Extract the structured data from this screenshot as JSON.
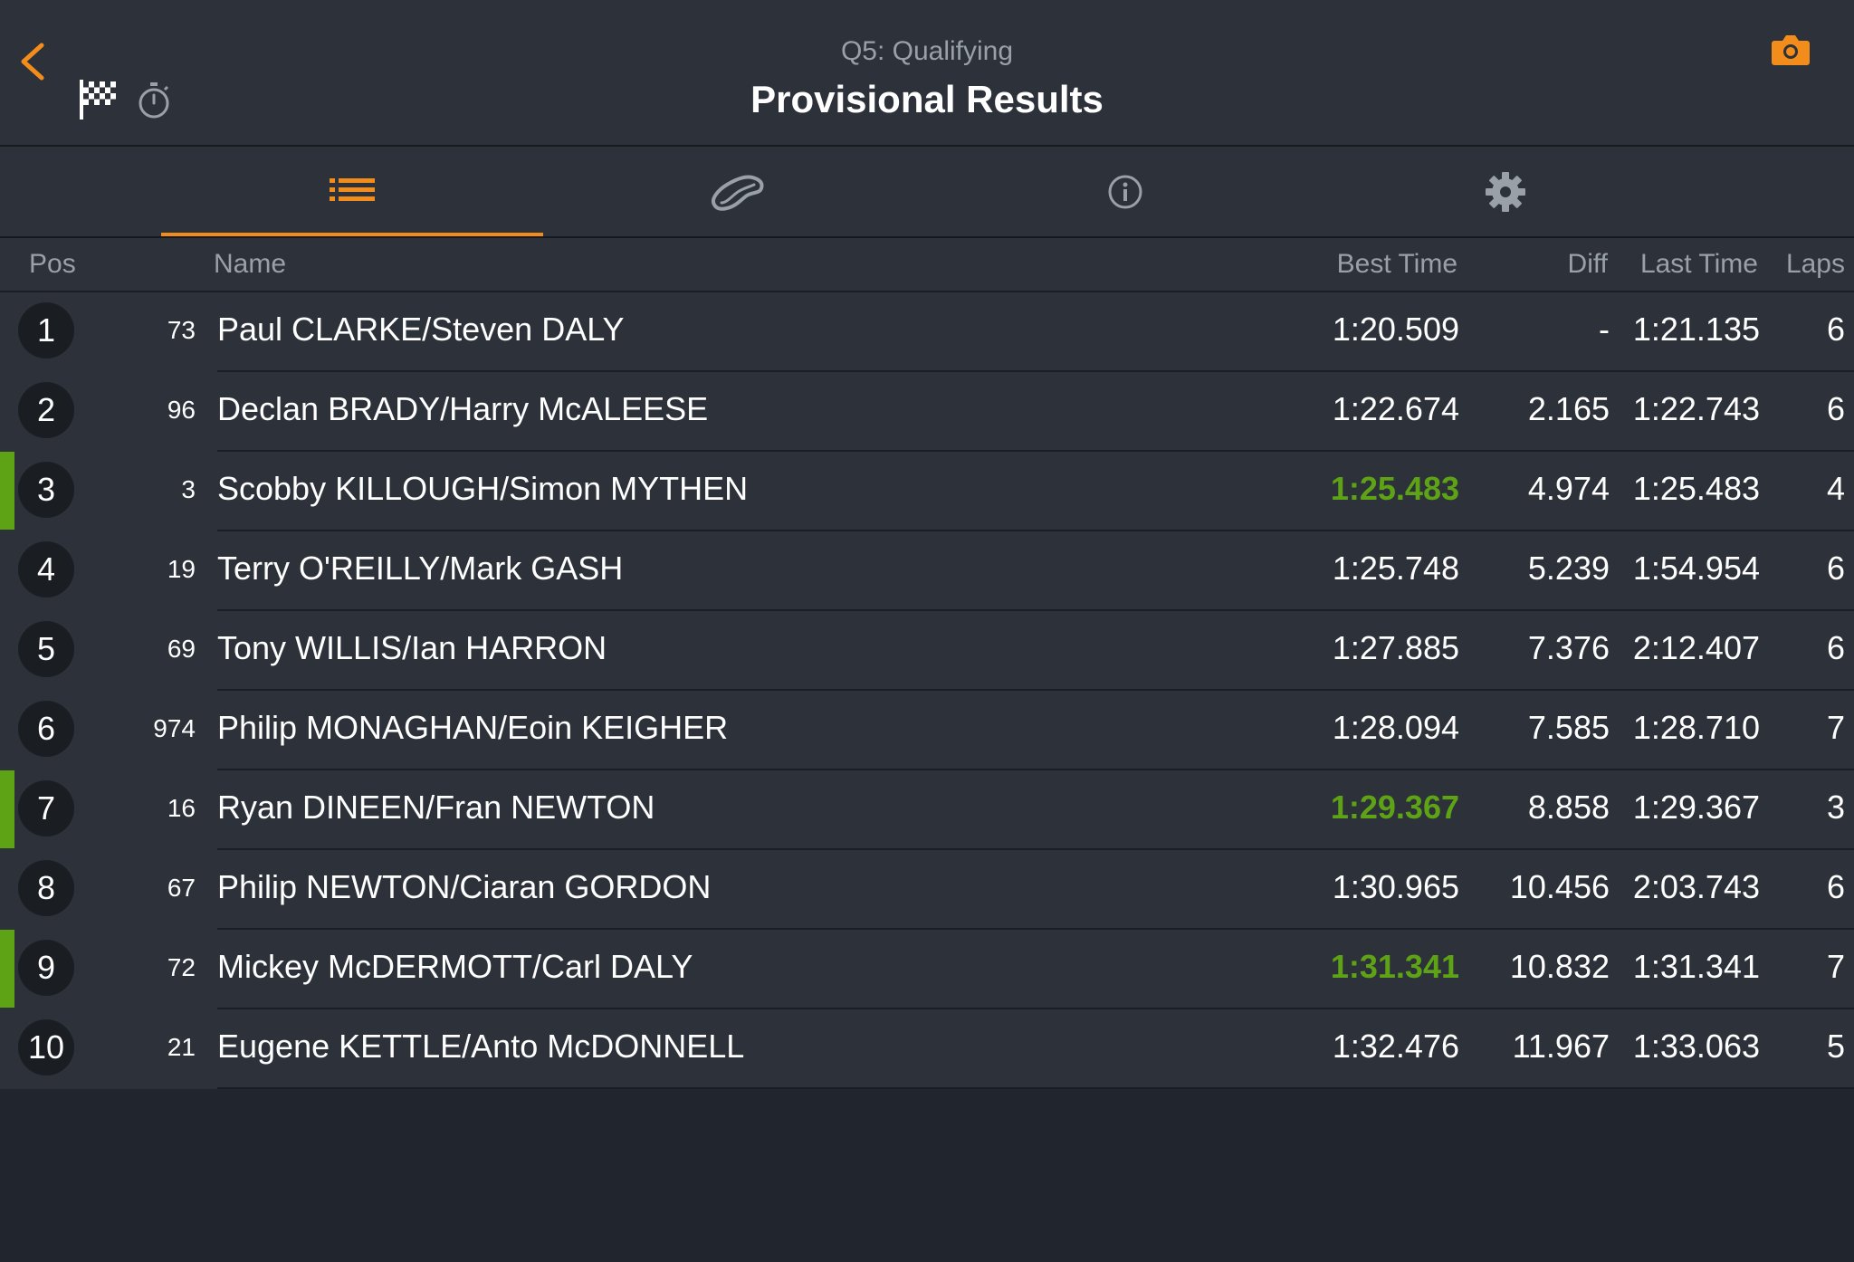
{
  "header": {
    "session": "Q5: Qualifying",
    "title": "Provisional Results"
  },
  "tabs": [
    {
      "icon": "list-icon",
      "active": true
    },
    {
      "icon": "track-icon",
      "active": false
    },
    {
      "icon": "info-icon",
      "active": false
    },
    {
      "icon": "gear-icon",
      "active": false
    }
  ],
  "columns": {
    "pos": "Pos",
    "name": "Name",
    "best": "Best Time",
    "diff": "Diff",
    "last": "Last Time",
    "laps": "Laps"
  },
  "colors": {
    "accent": "#f28d1c",
    "personal_best": "#5ea315",
    "background": "#21252d",
    "panel": "#2c313a"
  },
  "results": [
    {
      "pos": "1",
      "num": "73",
      "name": "Paul CLARKE/Steven DALY",
      "best": "1:20.509",
      "diff": "-",
      "last": "1:21.135",
      "laps": "6",
      "pb": false
    },
    {
      "pos": "2",
      "num": "96",
      "name": "Declan BRADY/Harry McALEESE",
      "best": "1:22.674",
      "diff": "2.165",
      "last": "1:22.743",
      "laps": "6",
      "pb": false
    },
    {
      "pos": "3",
      "num": "3",
      "name": "Scobby KILLOUGH/Simon MYTHEN",
      "best": "1:25.483",
      "diff": "4.974",
      "last": "1:25.483",
      "laps": "4",
      "pb": true
    },
    {
      "pos": "4",
      "num": "19",
      "name": "Terry O'REILLY/Mark GASH",
      "best": "1:25.748",
      "diff": "5.239",
      "last": "1:54.954",
      "laps": "6",
      "pb": false
    },
    {
      "pos": "5",
      "num": "69",
      "name": "Tony WILLIS/Ian HARRON",
      "best": "1:27.885",
      "diff": "7.376",
      "last": "2:12.407",
      "laps": "6",
      "pb": false
    },
    {
      "pos": "6",
      "num": "974",
      "name": "Philip MONAGHAN/Eoin KEIGHER",
      "best": "1:28.094",
      "diff": "7.585",
      "last": "1:28.710",
      "laps": "7",
      "pb": false
    },
    {
      "pos": "7",
      "num": "16",
      "name": "Ryan DINEEN/Fran NEWTON",
      "best": "1:29.367",
      "diff": "8.858",
      "last": "1:29.367",
      "laps": "3",
      "pb": true
    },
    {
      "pos": "8",
      "num": "67",
      "name": "Philip NEWTON/Ciaran GORDON",
      "best": "1:30.965",
      "diff": "10.456",
      "last": "2:03.743",
      "laps": "6",
      "pb": false
    },
    {
      "pos": "9",
      "num": "72",
      "name": "Mickey McDERMOTT/Carl DALY",
      "best": "1:31.341",
      "diff": "10.832",
      "last": "1:31.341",
      "laps": "7",
      "pb": true
    },
    {
      "pos": "10",
      "num": "21",
      "name": "Eugene KETTLE/Anto McDONNELL",
      "best": "1:32.476",
      "diff": "11.967",
      "last": "1:33.063",
      "laps": "5",
      "pb": false
    }
  ]
}
